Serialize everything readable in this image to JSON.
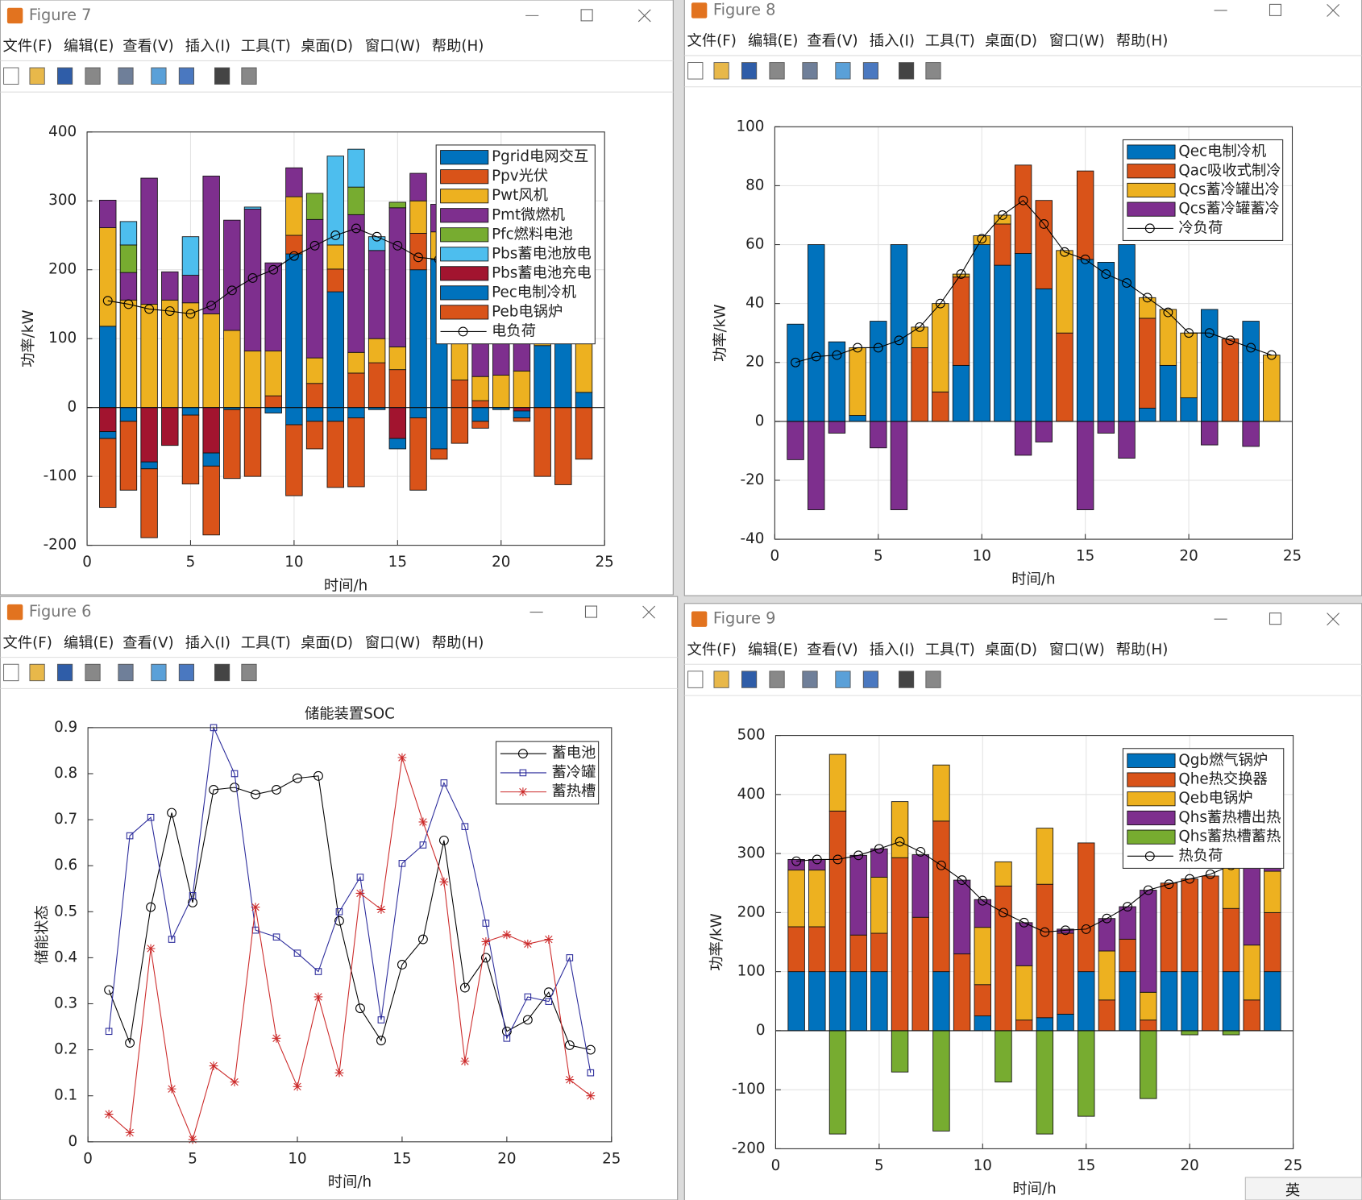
{
  "menu": [
    "文件(F)",
    "编辑(E)",
    "查看(V)",
    "插入(I)",
    "工具(T)",
    "桌面(D)",
    "窗口(W)",
    "帮助(H)"
  ],
  "windows": [
    {
      "title": "Figure 7"
    },
    {
      "title": "Figure 8"
    },
    {
      "title": "Figure 6"
    },
    {
      "title": "Figure 9"
    }
  ],
  "taskbar": {
    "ime": "英"
  },
  "chart_data": [
    {
      "type": "bar",
      "xlabel": "时间/h",
      "ylabel": "功率/kW",
      "xlim": [
        0,
        25
      ],
      "ylim": [
        -200,
        400
      ],
      "xticks": [
        0,
        5,
        10,
        15,
        20,
        25
      ],
      "yticks": [
        -200,
        -100,
        0,
        100,
        200,
        300,
        400
      ],
      "grid": true,
      "legend": "northeast",
      "x": [
        1,
        2,
        3,
        4,
        5,
        6,
        7,
        8,
        9,
        10,
        11,
        12,
        13,
        14,
        15,
        16,
        17,
        18,
        19,
        20,
        21,
        22,
        23,
        24
      ],
      "series": [
        {
          "name": "Pgrid电网交互",
          "color": "#0072bd",
          "values": [
            118,
            0,
            0,
            0,
            0,
            0,
            0,
            0,
            0,
            223,
            0,
            168,
            0,
            0,
            0,
            200,
            215,
            0,
            0,
            0,
            0,
            90,
            100,
            22
          ]
        },
        {
          "name": "Ppv光伏",
          "color": "#d95319",
          "values": [
            0,
            0,
            0,
            0,
            0,
            0,
            0,
            0,
            17,
            27,
            35,
            33,
            50,
            65,
            55,
            53,
            0,
            40,
            10,
            0,
            0,
            0,
            0,
            0
          ]
        },
        {
          "name": "Pwt风机",
          "color": "#edb120",
          "values": [
            143,
            156,
            150,
            156,
            152,
            136,
            112,
            82,
            65,
            56,
            37,
            35,
            30,
            35,
            33,
            47,
            40,
            55,
            35,
            47,
            53,
            10,
            10,
            78
          ]
        },
        {
          "name": "Pmt微燃机",
          "color": "#7e2f8e",
          "values": [
            40,
            40,
            183,
            41,
            40,
            200,
            160,
            206,
            128,
            42,
            201,
            0,
            200,
            128,
            202,
            40,
            40,
            60,
            55,
            53,
            47,
            40,
            30,
            20
          ]
        },
        {
          "name": "Pfc燃料电池",
          "color": "#77ac30",
          "values": [
            0,
            40,
            0,
            0,
            0,
            0,
            0,
            0,
            0,
            0,
            38,
            0,
            40,
            0,
            8,
            0,
            0,
            0,
            0,
            0,
            0,
            0,
            0,
            0
          ]
        },
        {
          "name": "Pbs蓄电池放电",
          "color": "#4dbeee",
          "values": [
            0,
            34,
            0,
            0,
            56,
            0,
            0,
            3,
            0,
            0,
            0,
            129,
            55,
            20,
            0,
            0,
            0,
            0,
            0,
            0,
            0,
            0,
            0,
            0
          ]
        },
        {
          "name": "Pbs蓄电池充电",
          "color": "#a2142f",
          "values": [
            -35,
            0,
            -79,
            -55,
            0,
            -66,
            0,
            0,
            0,
            0,
            0,
            0,
            0,
            0,
            -45,
            0,
            0,
            0,
            0,
            0,
            -5,
            0,
            0,
            0
          ]
        },
        {
          "name": "Pec电制冷机",
          "color": "#0072bd",
          "values": [
            -10,
            -20,
            -10,
            0,
            -11,
            -19,
            -3,
            0,
            -8,
            -25,
            -20,
            -20,
            -15,
            -3,
            -15,
            -15,
            -60,
            0,
            -20,
            -3,
            -10,
            0,
            0,
            0
          ]
        },
        {
          "name": "Peb电锅炉",
          "color": "#d95319",
          "values": [
            -100,
            -100,
            -100,
            0,
            -100,
            -100,
            -100,
            -100,
            0,
            -103,
            -40,
            -96,
            -100,
            0,
            0,
            -105,
            -15,
            -52,
            -10,
            0,
            -5,
            -100,
            -112,
            -75
          ]
        },
        {
          "name": "电负荷",
          "color": "#000000",
          "style": "line",
          "marker": "o",
          "values": [
            155,
            150,
            143,
            140,
            136,
            148,
            170,
            188,
            200,
            220,
            235,
            250,
            260,
            248,
            235,
            218,
            215,
            205,
            190,
            175,
            165,
            160,
            155,
            150
          ]
        }
      ]
    },
    {
      "type": "bar",
      "xlabel": "时间/h",
      "ylabel": "功率/kW",
      "xlim": [
        0,
        25
      ],
      "ylim": [
        -40,
        100
      ],
      "xticks": [
        0,
        5,
        10,
        15,
        20,
        25
      ],
      "yticks": [
        -40,
        -20,
        0,
        20,
        40,
        60,
        80,
        100
      ],
      "grid": true,
      "legend": "northeast",
      "x": [
        1,
        2,
        3,
        4,
        5,
        6,
        7,
        8,
        9,
        10,
        11,
        12,
        13,
        14,
        15,
        16,
        17,
        18,
        19,
        20,
        21,
        22,
        23,
        24
      ],
      "series": [
        {
          "name": "Qec电制冷机",
          "color": "#0072bd",
          "values": [
            33,
            60,
            27,
            2,
            34,
            60,
            0,
            0,
            19,
            60,
            53,
            57,
            45,
            0,
            55,
            54,
            60,
            4.5,
            19,
            8,
            38,
            0,
            34,
            0
          ]
        },
        {
          "name": "Qac吸收式制冷",
          "color": "#d95319",
          "values": [
            0,
            0,
            0,
            0,
            0,
            0,
            25,
            10,
            30,
            0,
            14,
            30,
            30,
            30,
            30,
            0,
            0,
            30.5,
            0,
            0,
            0,
            28,
            0,
            0
          ]
        },
        {
          "name": "Qcs蓄冷罐出冷",
          "color": "#edb120",
          "values": [
            0,
            0,
            0,
            23,
            0,
            0,
            7,
            30,
            1,
            3,
            3,
            0,
            0,
            28,
            0,
            0,
            0,
            7,
            19,
            22,
            0,
            0,
            0,
            22.5
          ]
        },
        {
          "name": "Qcs蓄冷罐蓄冷",
          "color": "#7e2f8e",
          "values": [
            -13,
            -30,
            -4,
            0,
            -9,
            -30,
            0,
            0,
            0,
            0,
            0,
            -11.5,
            -7,
            0,
            -30,
            -4,
            -12.5,
            0,
            0,
            0,
            -8,
            0,
            -8.5,
            0
          ]
        },
        {
          "name": "冷负荷",
          "color": "#000000",
          "style": "line",
          "marker": "o",
          "values": [
            20,
            22,
            22.5,
            25,
            25,
            27.5,
            32,
            40,
            50,
            62,
            70,
            75,
            67,
            57.5,
            55,
            50,
            47,
            42,
            37,
            30,
            30,
            27.5,
            25,
            22.5
          ]
        }
      ]
    },
    {
      "type": "line",
      "title": "储能装置SOC",
      "xlabel": "时间/h",
      "ylabel": "储能状态",
      "xlim": [
        0,
        25
      ],
      "ylim": [
        0,
        0.9
      ],
      "xticks": [
        0,
        5,
        10,
        15,
        20,
        25
      ],
      "yticks": [
        0,
        0.1,
        0.2,
        0.3,
        0.4,
        0.5,
        0.6,
        0.7,
        0.8,
        0.9
      ],
      "grid": false,
      "legend": "northeast",
      "x": [
        1,
        2,
        3,
        4,
        5,
        6,
        7,
        8,
        9,
        10,
        11,
        12,
        13,
        14,
        15,
        16,
        17,
        18,
        19,
        20,
        21,
        22,
        23,
        24
      ],
      "series": [
        {
          "name": "蓄电池",
          "color": "#000000",
          "marker": "o",
          "values": [
            0.33,
            0.215,
            0.51,
            0.715,
            0.52,
            0.765,
            0.77,
            0.755,
            0.765,
            0.79,
            0.795,
            0.48,
            0.29,
            0.22,
            0.385,
            0.44,
            0.655,
            0.335,
            0.4,
            0.24,
            0.265,
            0.325,
            0.21,
            0.2
          ]
        },
        {
          "name": "蓄冷罐",
          "color": "#2b2b9b",
          "marker": "s",
          "values": [
            0.24,
            0.665,
            0.705,
            0.44,
            0.535,
            0.9,
            0.8,
            0.46,
            0.445,
            0.41,
            0.37,
            0.5,
            0.575,
            0.265,
            0.605,
            0.645,
            0.78,
            0.685,
            0.475,
            0.225,
            0.315,
            0.305,
            0.4,
            0.15
          ]
        },
        {
          "name": "蓄热槽",
          "color": "#cc2a2a",
          "marker": "*",
          "values": [
            0.06,
            0.02,
            0.42,
            0.115,
            0.005,
            0.165,
            0.13,
            0.51,
            0.225,
            0.12,
            0.315,
            0.15,
            0.54,
            0.505,
            0.835,
            0.695,
            0.565,
            0.175,
            0.435,
            0.45,
            0.43,
            0.44,
            0.135,
            0.1
          ]
        }
      ]
    },
    {
      "type": "bar",
      "xlabel": "时间/h",
      "ylabel": "功率/kW",
      "xlim": [
        0,
        25
      ],
      "ylim": [
        -200,
        500
      ],
      "xticks": [
        0,
        5,
        10,
        15,
        20,
        25
      ],
      "yticks": [
        -200,
        -100,
        0,
        100,
        200,
        300,
        400,
        500
      ],
      "grid": true,
      "legend": "northeast",
      "x": [
        1,
        2,
        3,
        4,
        5,
        6,
        7,
        8,
        9,
        10,
        11,
        12,
        13,
        14,
        15,
        16,
        17,
        18,
        19,
        20,
        21,
        22,
        23,
        24
      ],
      "series": [
        {
          "name": "Qgb燃气锅炉",
          "color": "#0072bd",
          "values": [
            100,
            100,
            100,
            100,
            100,
            0,
            0,
            100,
            0,
            25,
            0,
            0,
            22,
            28,
            100,
            0,
            100,
            0,
            100,
            100,
            0,
            100,
            0,
            100
          ]
        },
        {
          "name": "Qhe热交换器",
          "color": "#d95319",
          "values": [
            76,
            76,
            272,
            62,
            65,
            293,
            192,
            255,
            130,
            53,
            245,
            18,
            226,
            137,
            218,
            52,
            55,
            18,
            150,
            157,
            262,
            107,
            52,
            100
          ]
        },
        {
          "name": "Qeb电锅炉",
          "color": "#edb120",
          "values": [
            96,
            96,
            96,
            0,
            95,
            95,
            0,
            95,
            0,
            97,
            41,
            92,
            95,
            0,
            0,
            83,
            0,
            47,
            0,
            0,
            0,
            73,
            93,
            70
          ]
        },
        {
          "name": "Qhs蓄热槽出热",
          "color": "#7e2f8e",
          "values": [
            18,
            18,
            0,
            135,
            48,
            0,
            106,
            0,
            125,
            47,
            0,
            73,
            0,
            7,
            0,
            55,
            55,
            173,
            0,
            0,
            0,
            0,
            150,
            30
          ]
        },
        {
          "name": "Qhs蓄热槽蓄热",
          "color": "#77ac30",
          "values": [
            0,
            0,
            -175,
            0,
            0,
            -70,
            0,
            -170,
            0,
            0,
            -87,
            0,
            -175,
            0,
            -145,
            0,
            0,
            -115,
            0,
            -7,
            0,
            -7,
            0,
            0
          ]
        },
        {
          "name": "热负荷",
          "color": "#000000",
          "style": "line",
          "marker": "o",
          "values": [
            287,
            290,
            290,
            297,
            308,
            320,
            303,
            280,
            255,
            220,
            200,
            183,
            167,
            170,
            172,
            190,
            210,
            238,
            248,
            257,
            265,
            280,
            295,
            300
          ]
        }
      ]
    }
  ]
}
